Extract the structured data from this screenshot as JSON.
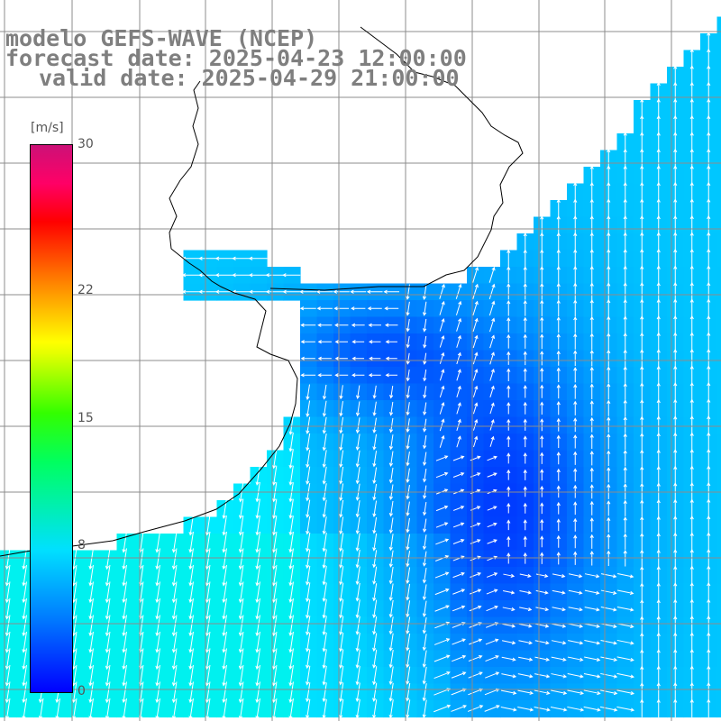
{
  "header": {
    "line1": "modelo GEFS-WAVE (NCEP)",
    "line2": "forecast date: 2025-04-23 12:00:00",
    "line3": "valid date: 2025-04-29 21:00:00"
  },
  "colorbar": {
    "unit": "[m/s]",
    "ticks": [
      {
        "label": "30",
        "value": 30
      },
      {
        "label": "22",
        "value": 22
      },
      {
        "label": "15",
        "value": 15
      },
      {
        "label": "8",
        "value": 8
      },
      {
        "label": "0",
        "value": 0
      }
    ],
    "range": [
      0,
      30
    ],
    "colors": [
      "#0000ff",
      "#0077ff",
      "#00e0ff",
      "#00ff60",
      "#e6ff00",
      "#ffff00",
      "#ff9900",
      "#ff0000",
      "#cc1177"
    ]
  },
  "map": {
    "variable": "wind speed and direction",
    "land_color": "#ffffff",
    "grid_color": "#8c8c8c",
    "coastline_color": "#000000",
    "arrow_color": "#ffffff"
  }
}
